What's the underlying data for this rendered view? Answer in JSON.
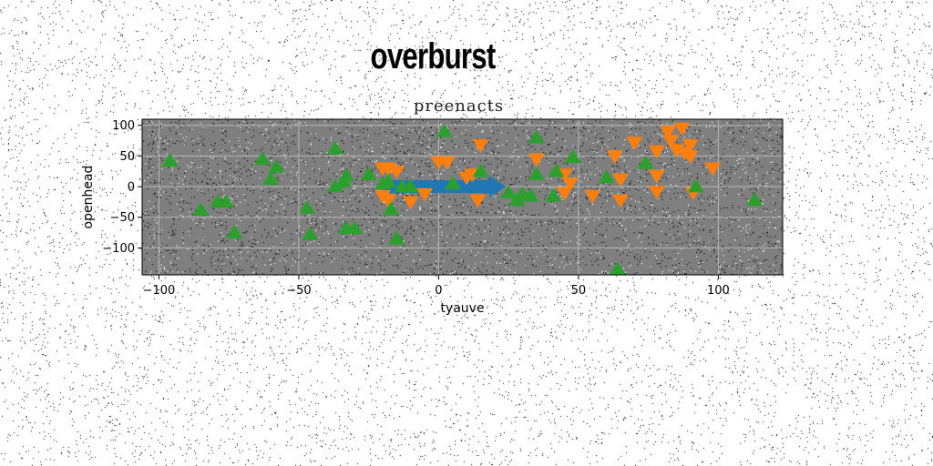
{
  "figure": {
    "suptitle": "overburst"
  },
  "chart_data": {
    "type": "scatter",
    "title": "preenacts",
    "xlabel": "tyauve",
    "ylabel": "openhead",
    "xlim": [
      -106,
      123
    ],
    "ylim": [
      -144,
      110
    ],
    "xticks": [
      -100,
      -50,
      0,
      50,
      100
    ],
    "yticks": [
      -100,
      -50,
      0,
      50,
      100
    ],
    "xtick_labels": [
      "−100",
      "−50",
      "0",
      "50",
      "100"
    ],
    "ytick_labels": [
      "−100",
      "−50",
      "0",
      "50",
      "100"
    ],
    "grid": true,
    "background": "#7f7f7f",
    "arrow": {
      "color": "#1f77b4",
      "from": [
        -20,
        0
      ],
      "to": [
        24,
        0
      ]
    },
    "series": [
      {
        "marker": "triangle-down",
        "color": "#ff7f0e",
        "points": [
          [
            -20,
            30
          ],
          [
            -18,
            30
          ],
          [
            -15,
            25
          ],
          [
            -20,
            -15
          ],
          [
            -18,
            -22
          ],
          [
            -10,
            -25
          ],
          [
            -5,
            -12
          ],
          [
            0,
            40
          ],
          [
            3,
            40
          ],
          [
            10,
            15
          ],
          [
            12,
            20
          ],
          [
            14,
            -22
          ],
          [
            15,
            68
          ],
          [
            35,
            45
          ],
          [
            45,
            20
          ],
          [
            47,
            5
          ],
          [
            45,
            -10
          ],
          [
            55,
            -15
          ],
          [
            63,
            50
          ],
          [
            65,
            12
          ],
          [
            65,
            -22
          ],
          [
            70,
            72
          ],
          [
            78,
            58
          ],
          [
            78,
            18
          ],
          [
            78,
            -8
          ],
          [
            82,
            90
          ],
          [
            83,
            75
          ],
          [
            85,
            60
          ],
          [
            87,
            95
          ],
          [
            88,
            55
          ],
          [
            90,
            68
          ],
          [
            90,
            50
          ],
          [
            91,
            -10
          ],
          [
            98,
            30
          ]
        ]
      },
      {
        "marker": "triangle-up",
        "color": "#2ca02c",
        "points": [
          [
            -96,
            42
          ],
          [
            -85,
            -38
          ],
          [
            -79,
            -25
          ],
          [
            -76,
            -25
          ],
          [
            -73,
            -75
          ],
          [
            -63,
            45
          ],
          [
            -58,
            32
          ],
          [
            -60,
            12
          ],
          [
            -47,
            -35
          ],
          [
            -46,
            -78
          ],
          [
            -37,
            62
          ],
          [
            -37,
            0
          ],
          [
            -34,
            8
          ],
          [
            -33,
            -68
          ],
          [
            -33,
            18
          ],
          [
            -30,
            -68
          ],
          [
            -25,
            20
          ],
          [
            -20,
            5
          ],
          [
            -18,
            8
          ],
          [
            -17,
            -37
          ],
          [
            -15,
            -85
          ],
          [
            -13,
            0
          ],
          [
            -10,
            0
          ],
          [
            2,
            90
          ],
          [
            5,
            5
          ],
          [
            15,
            25
          ],
          [
            25,
            -10
          ],
          [
            28,
            -22
          ],
          [
            30,
            -12
          ],
          [
            33,
            -15
          ],
          [
            35,
            20
          ],
          [
            35,
            80
          ],
          [
            41,
            -15
          ],
          [
            42,
            25
          ],
          [
            48,
            48
          ],
          [
            60,
            15
          ],
          [
            74,
            38
          ],
          [
            92,
            0
          ],
          [
            113,
            -22
          ],
          [
            64,
            -135
          ]
        ]
      }
    ]
  }
}
